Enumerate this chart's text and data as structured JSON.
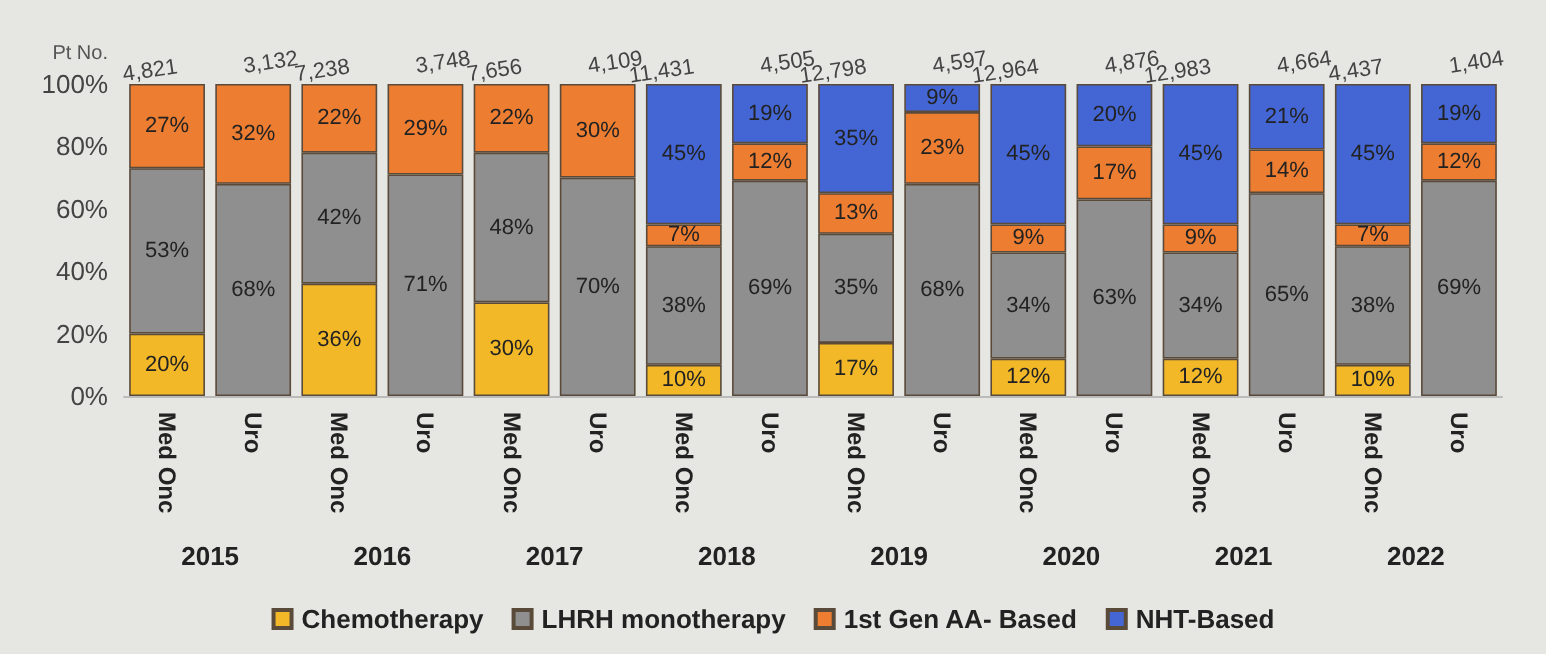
{
  "chart_data": {
    "type": "bar",
    "stacked": true,
    "ylabel": "Pt No.",
    "categories": [
      "Med Onc",
      "Uro",
      "Med Onc",
      "Uro",
      "Med Onc",
      "Uro",
      "Med Onc",
      "Uro",
      "Med Onc",
      "Uro",
      "Med Onc",
      "Uro",
      "Med Onc",
      "Uro",
      "Med Onc",
      "Uro"
    ],
    "annotations": [
      "2015",
      "2016",
      "2017",
      "2018",
      "2019",
      "2020",
      "2021",
      "2022",
      {
        "text": "4,821",
        "y": 100
      },
      {
        "text": "3,132",
        "y": 100
      },
      {
        "text": "7,238",
        "y": 100
      },
      {
        "text": "3,748",
        "y": 100
      },
      {
        "text": "7,656",
        "y": 100
      },
      {
        "text": "4,109",
        "y": 100
      },
      {
        "text": "11,431",
        "y": 100
      },
      {
        "text": "4,505",
        "y": 100
      },
      {
        "text": "12,798",
        "y": 100
      },
      {
        "text": "4,597",
        "y": 100
      },
      {
        "text": "12,964",
        "y": 100
      },
      {
        "text": "4,876",
        "y": 100
      },
      {
        "text": "12,983",
        "y": 100
      },
      {
        "text": "4,664",
        "y": 100
      },
      {
        "text": "4,437",
        "y": 100
      },
      {
        "text": "1,404",
        "y": 100
      }
    ],
    "series": [
      {
        "name": "Chemotherapy",
        "color": "#f2b828",
        "values": [
          20,
          null,
          36,
          null,
          30,
          null,
          10,
          null,
          17,
          null,
          12,
          null,
          12,
          null,
          10,
          null
        ],
        "value_labels": [
          "20%",
          null,
          "36%",
          null,
          "30%",
          null,
          "10%",
          null,
          "17%",
          null,
          "12%",
          null,
          "12%",
          null,
          "10%",
          null
        ]
      },
      {
        "name": "LHRH monotherapy",
        "color": "#8f8f8f",
        "values": [
          53,
          68,
          42,
          71,
          48,
          70,
          38,
          69,
          35,
          68,
          34,
          63,
          34,
          65,
          38,
          69
        ],
        "value_labels": [
          "53%",
          "68%",
          "42%",
          "71%",
          "48%",
          "70%",
          "38%",
          "69%",
          "35%",
          "68%",
          "34%",
          "63%",
          "34%",
          "65%",
          "38%",
          "69%"
        ]
      },
      {
        "name": "1st Gen AA- Based",
        "color": "#ed7d31",
        "values": [
          27,
          32,
          22,
          29,
          22,
          30,
          7,
          12,
          13,
          23,
          9,
          17,
          9,
          14,
          7,
          12
        ],
        "value_labels": [
          "27%",
          "32%",
          "22%",
          "29%",
          "22%",
          "30%",
          "7%",
          "12%",
          "13%",
          "23%",
          "9%",
          "17%",
          "9%",
          "14%",
          "7%",
          "12%"
        ]
      },
      {
        "name": "NHT-Based",
        "color": "#4466d4",
        "values": [
          null,
          null,
          null,
          null,
          null,
          null,
          45,
          19,
          35,
          9,
          45,
          20,
          45,
          21,
          45,
          19
        ],
        "value_labels": [
          null,
          null,
          null,
          null,
          null,
          null,
          "45%",
          "19%",
          "35%",
          "9%",
          "45%",
          "20%",
          "45%",
          "21%",
          "45%",
          "19%"
        ]
      }
    ],
    "ylim": [
      0,
      100
    ],
    "yticks": [
      {
        "value": 0,
        "label": "0%"
      },
      {
        "value": 20,
        "label": "20%"
      },
      {
        "value": 40,
        "label": "40%"
      },
      {
        "value": 60,
        "label": "60%"
      },
      {
        "value": 80,
        "label": "80%"
      },
      {
        "value": 100,
        "label": "100%"
      }
    ],
    "grid": false,
    "legend": "bottom"
  }
}
